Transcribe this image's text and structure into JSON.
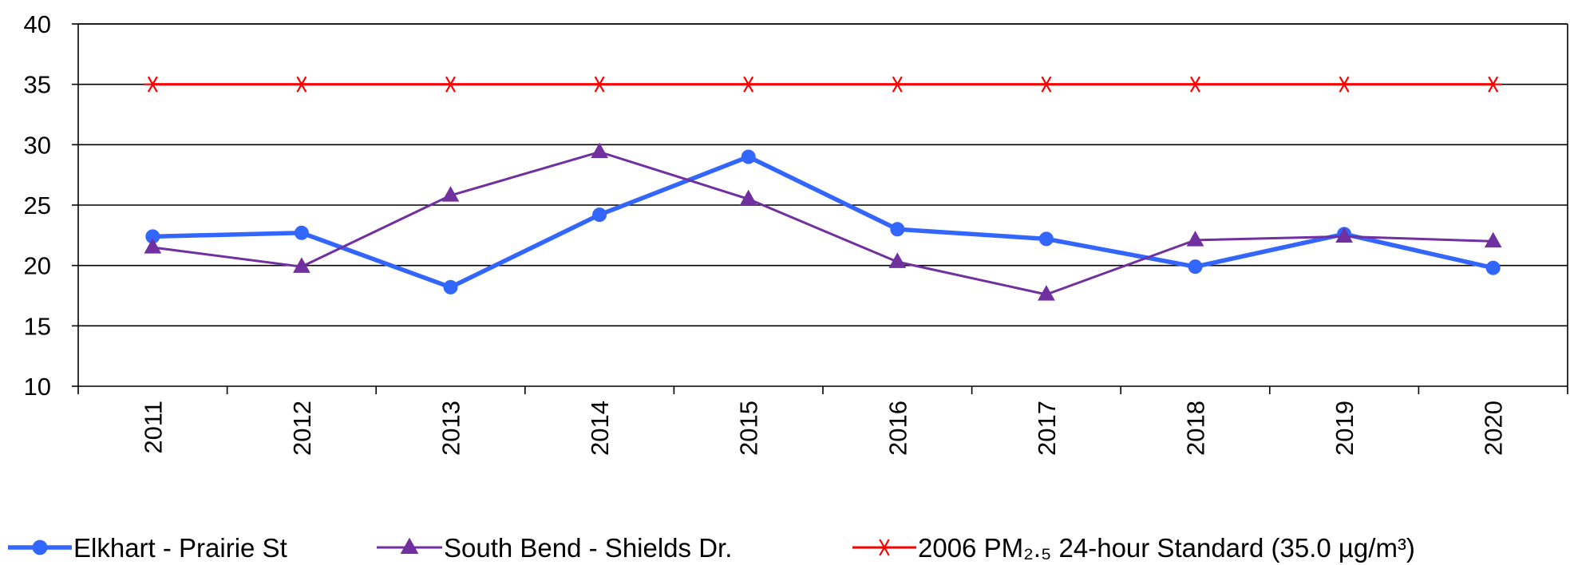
{
  "chart_data": {
    "type": "line",
    "title": "",
    "xlabel": "",
    "ylabel": "",
    "categories": [
      "2011",
      "2012",
      "2013",
      "2014",
      "2015",
      "2016",
      "2017",
      "2018",
      "2019",
      "2020"
    ],
    "ylim": [
      10,
      40
    ],
    "yticks": [
      10,
      15,
      20,
      25,
      30,
      35,
      40
    ],
    "grid": true,
    "legend_position": "bottom",
    "series": [
      {
        "name": "Elkhart - Prairie St",
        "marker": "circle",
        "color": "#3366FF",
        "values": [
          22.4,
          22.7,
          18.2,
          24.2,
          29.0,
          23.0,
          22.2,
          19.9,
          22.6,
          19.8
        ]
      },
      {
        "name": "South Bend - Shields Dr.",
        "marker": "triangle",
        "color": "#7030A0",
        "values": [
          21.5,
          19.9,
          25.8,
          29.4,
          25.5,
          20.3,
          17.6,
          22.1,
          22.4,
          22.0
        ]
      },
      {
        "name": "2006 PM₂.₅ 24-hour Standard (35.0 µg/m³)",
        "marker": "asterisk",
        "color": "#FF0000",
        "values": [
          35,
          35,
          35,
          35,
          35,
          35,
          35,
          35,
          35,
          35
        ]
      }
    ]
  }
}
